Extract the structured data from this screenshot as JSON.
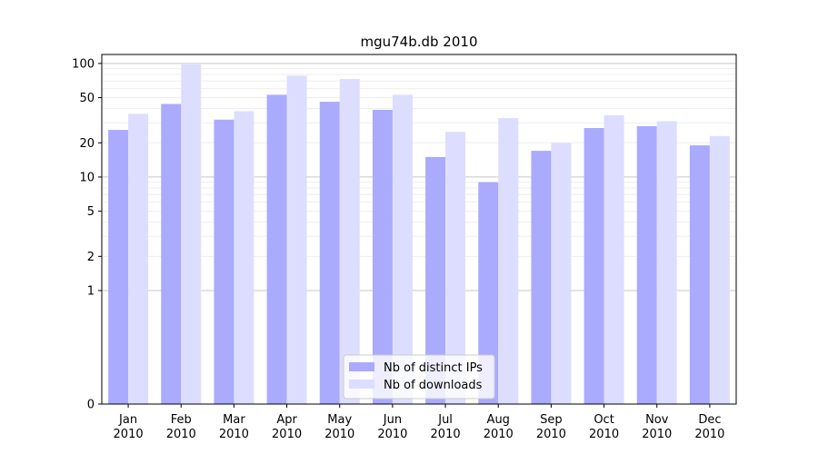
{
  "chart_data": {
    "type": "bar",
    "title": "mgu74b.db 2010",
    "xlabel": "",
    "ylabel": "",
    "y_scale": "symlog",
    "ylim": [
      0,
      120
    ],
    "grid": "horizontal",
    "legend_position": "bottom-center",
    "categories": [
      [
        "Jan",
        "2010"
      ],
      [
        "Feb",
        "2010"
      ],
      [
        "Mar",
        "2010"
      ],
      [
        "Apr",
        "2010"
      ],
      [
        "May",
        "2010"
      ],
      [
        "Jun",
        "2010"
      ],
      [
        "Jul",
        "2010"
      ],
      [
        "Aug",
        "2010"
      ],
      [
        "Sep",
        "2010"
      ],
      [
        "Oct",
        "2010"
      ],
      [
        "Nov",
        "2010"
      ],
      [
        "Dec",
        "2010"
      ]
    ],
    "y_ticks": [
      {
        "value": 0,
        "label": "0"
      },
      {
        "value": 1,
        "label": "1"
      },
      {
        "value": 2,
        "label": "2"
      },
      {
        "value": 5,
        "label": "5"
      },
      {
        "value": 10,
        "label": "10"
      },
      {
        "value": 20,
        "label": "20"
      },
      {
        "value": 50,
        "label": "50"
      },
      {
        "value": 100,
        "label": "100"
      }
    ],
    "series": [
      {
        "name": "Nb of distinct IPs",
        "color": "#aaaaff",
        "values": [
          26,
          44,
          32,
          53,
          46,
          39,
          15,
          9,
          17,
          27,
          28,
          19
        ]
      },
      {
        "name": "Nb of downloads",
        "color": "#ddddff",
        "values": [
          36,
          98,
          38,
          78,
          73,
          53,
          25,
          33,
          20,
          35,
          31,
          23
        ]
      }
    ]
  }
}
